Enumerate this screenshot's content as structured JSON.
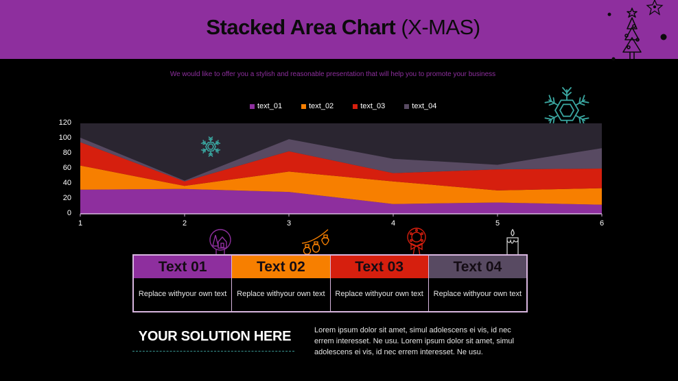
{
  "header": {
    "title_bold": "Stacked Area Chart",
    "title_light": "(X-MAS)",
    "subtitle": "We would like to offer you a stylish and reasonable presentation that will help you to promote your business",
    "banner_color": "#8e2f9e"
  },
  "chart_data": {
    "type": "area",
    "stacked": true,
    "title": "",
    "xlabel": "",
    "ylabel": "",
    "categories": [
      "1",
      "2",
      "3",
      "4",
      "5",
      "6"
    ],
    "series": [
      {
        "name": "text_01",
        "color": "#8e2f9e",
        "values": [
          32,
          33,
          29,
          13,
          15,
          12
        ]
      },
      {
        "name": "text_02",
        "color": "#f77f00",
        "values": [
          32,
          4,
          27,
          30,
          16,
          22
        ]
      },
      {
        "name": "text_03",
        "color": "#d61f0e",
        "values": [
          31,
          6,
          27,
          11,
          28,
          26
        ]
      },
      {
        "name": "text_04",
        "color": "#584a62",
        "values": [
          6,
          1,
          16,
          19,
          6,
          27
        ]
      }
    ],
    "ylim": [
      0,
      120
    ],
    "yticks": [
      "0",
      "20",
      "40",
      "60",
      "80",
      "100",
      "120"
    ],
    "plot_background": "#2a2530",
    "grid": false,
    "legend_position": "top"
  },
  "cards": [
    {
      "title": "Text 01",
      "body_line1": "Replace with",
      "body_line2": "your own text",
      "color": "#8e2f9e",
      "icon": "snow-globe-icon"
    },
    {
      "title": "Text 02",
      "body_line1": "Replace with",
      "body_line2": "your own text",
      "color": "#f77f00",
      "icon": "string-lights-icon"
    },
    {
      "title": "Text 03",
      "body_line1": "Replace with",
      "body_line2": "your own text",
      "color": "#d61f0e",
      "icon": "wreath-icon"
    },
    {
      "title": "Text 04",
      "body_line1": "Replace with",
      "body_line2": "your own text",
      "color": "#584a62",
      "icon": "candle-icon"
    }
  ],
  "footer": {
    "solution_heading": "YOUR SOLUTION HERE",
    "paragraph": "Lorem ipsum dolor sit amet, simul adolescens ei vis, id nec errem interesset. Ne usu. Lorem ipsum dolor sit amet, simul adolescens ei vis, id nec errem interesset. Ne usu."
  },
  "decorations": [
    "christmas-tree-icon",
    "star-icon",
    "snowflake-icon"
  ]
}
